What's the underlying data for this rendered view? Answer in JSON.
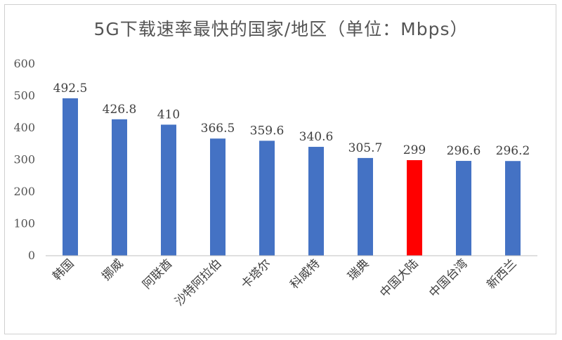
{
  "chart_data": {
    "type": "bar",
    "title": "5G下载速率最快的国家/地区（单位：Mbps）",
    "categories": [
      "韩国",
      "挪威",
      "阿联酋",
      "沙特阿拉伯",
      "卡塔尔",
      "科威特",
      "瑞典",
      "中国大陆",
      "中国台湾",
      "新西兰"
    ],
    "values": [
      492.5,
      426.8,
      410,
      366.5,
      359.6,
      340.6,
      305.7,
      299,
      296.6,
      296.2
    ],
    "data_labels": [
      "492.5",
      "426.8",
      "410",
      "366.5",
      "359.6",
      "340.6",
      "305.7",
      "299",
      "296.6",
      "296.2"
    ],
    "yticks": [
      0,
      100,
      200,
      300,
      400,
      500,
      600
    ],
    "ylim": [
      0,
      600
    ],
    "grid": false,
    "legend": "none",
    "colors": {
      "default_bar": "#4472C4",
      "highlight_bar": "#FF0000",
      "highlight_category": "中国大陆",
      "axis": "#bfbfbf",
      "text": "#404040"
    }
  }
}
